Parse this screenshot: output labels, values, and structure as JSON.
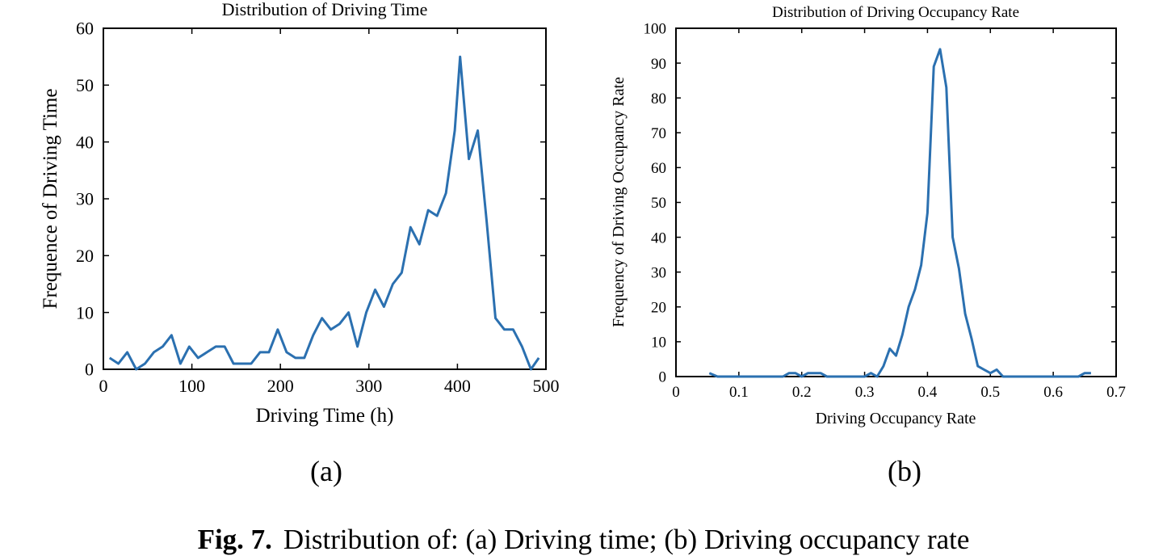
{
  "chart_data": [
    {
      "type": "line",
      "panel_label": "(a)",
      "title": "Distribution of Driving Time",
      "xlabel": "Driving Time (h)",
      "ylabel": "Frequence of Driving Time",
      "xlim": [
        0,
        500
      ],
      "ylim": [
        0,
        60
      ],
      "xticks": [
        "0",
        "100",
        "200",
        "300",
        "400",
        "500"
      ],
      "yticks": [
        "0",
        "10",
        "20",
        "30",
        "40",
        "50",
        "60"
      ],
      "xtick_values": [
        0,
        100,
        200,
        300,
        400,
        500
      ],
      "ytick_values": [
        0,
        10,
        20,
        30,
        40,
        50,
        60
      ],
      "grid": false,
      "color": "#2b70b0",
      "x": [
        7,
        17,
        27,
        37,
        47,
        57,
        67,
        77,
        87,
        97,
        107,
        117,
        127,
        137,
        147,
        157,
        167,
        177,
        187,
        197,
        207,
        217,
        227,
        237,
        247,
        257,
        267,
        277,
        287,
        297,
        307,
        317,
        327,
        337,
        347,
        357,
        367,
        377,
        387,
        397,
        403,
        413,
        423,
        433,
        443,
        453,
        463,
        473,
        483,
        492
      ],
      "y": [
        2,
        1,
        3,
        0,
        1,
        3,
        4,
        6,
        1,
        4,
        2,
        3,
        4,
        4,
        1,
        1,
        1,
        3,
        3,
        7,
        3,
        2,
        2,
        6,
        9,
        7,
        8,
        10,
        4,
        10,
        14,
        11,
        15,
        17,
        25,
        22,
        28,
        27,
        31,
        42,
        55,
        37,
        42,
        26,
        9,
        7,
        7,
        4,
        0,
        2
      ]
    },
    {
      "type": "line",
      "panel_label": "(b)",
      "title": "Distribution of Driving Occupancy Rate",
      "xlabel": "Driving Occupancy Rate",
      "ylabel": "Frequency of Driving Occupancy Rate",
      "xlim": [
        0,
        0.7
      ],
      "ylim": [
        0,
        100
      ],
      "xticks": [
        "0",
        "0.1",
        "0.2",
        "0.3",
        "0.4",
        "0.5",
        "0.6",
        "0.7"
      ],
      "yticks": [
        "0",
        "10",
        "20",
        "30",
        "40",
        "50",
        "60",
        "70",
        "80",
        "90",
        "100"
      ],
      "xtick_values": [
        0,
        0.1,
        0.2,
        0.3,
        0.4,
        0.5,
        0.6,
        0.7
      ],
      "ytick_values": [
        0,
        10,
        20,
        30,
        40,
        50,
        60,
        70,
        80,
        90,
        100
      ],
      "grid": false,
      "color": "#2b70b0",
      "x": [
        0.053,
        0.066,
        0.079,
        0.092,
        0.105,
        0.118,
        0.131,
        0.144,
        0.157,
        0.17,
        0.18,
        0.19,
        0.2,
        0.21,
        0.22,
        0.23,
        0.24,
        0.25,
        0.26,
        0.27,
        0.28,
        0.29,
        0.3,
        0.31,
        0.32,
        0.33,
        0.34,
        0.35,
        0.36,
        0.37,
        0.38,
        0.39,
        0.4,
        0.41,
        0.42,
        0.43,
        0.44,
        0.45,
        0.46,
        0.47,
        0.48,
        0.49,
        0.5,
        0.51,
        0.52,
        0.53,
        0.54,
        0.55,
        0.56,
        0.57,
        0.58,
        0.59,
        0.6,
        0.61,
        0.62,
        0.63,
        0.64,
        0.65,
        0.66
      ],
      "y": [
        1,
        0,
        0,
        0,
        0,
        0,
        0,
        0,
        0,
        0,
        1,
        1,
        0,
        1,
        1,
        1,
        0,
        0,
        0,
        0,
        0,
        0,
        0,
        1,
        0,
        3,
        8,
        6,
        12,
        20,
        25,
        32,
        47,
        89,
        94,
        83,
        40,
        31,
        18,
        11,
        3,
        2,
        1,
        2,
        0,
        0,
        0,
        0,
        0,
        0,
        0,
        0,
        0,
        0,
        0,
        0,
        0,
        1,
        1
      ]
    }
  ],
  "caption": {
    "label": "Fig. 7.",
    "text": "Distribution of: (a) Driving time; (b) Driving occupancy rate"
  }
}
